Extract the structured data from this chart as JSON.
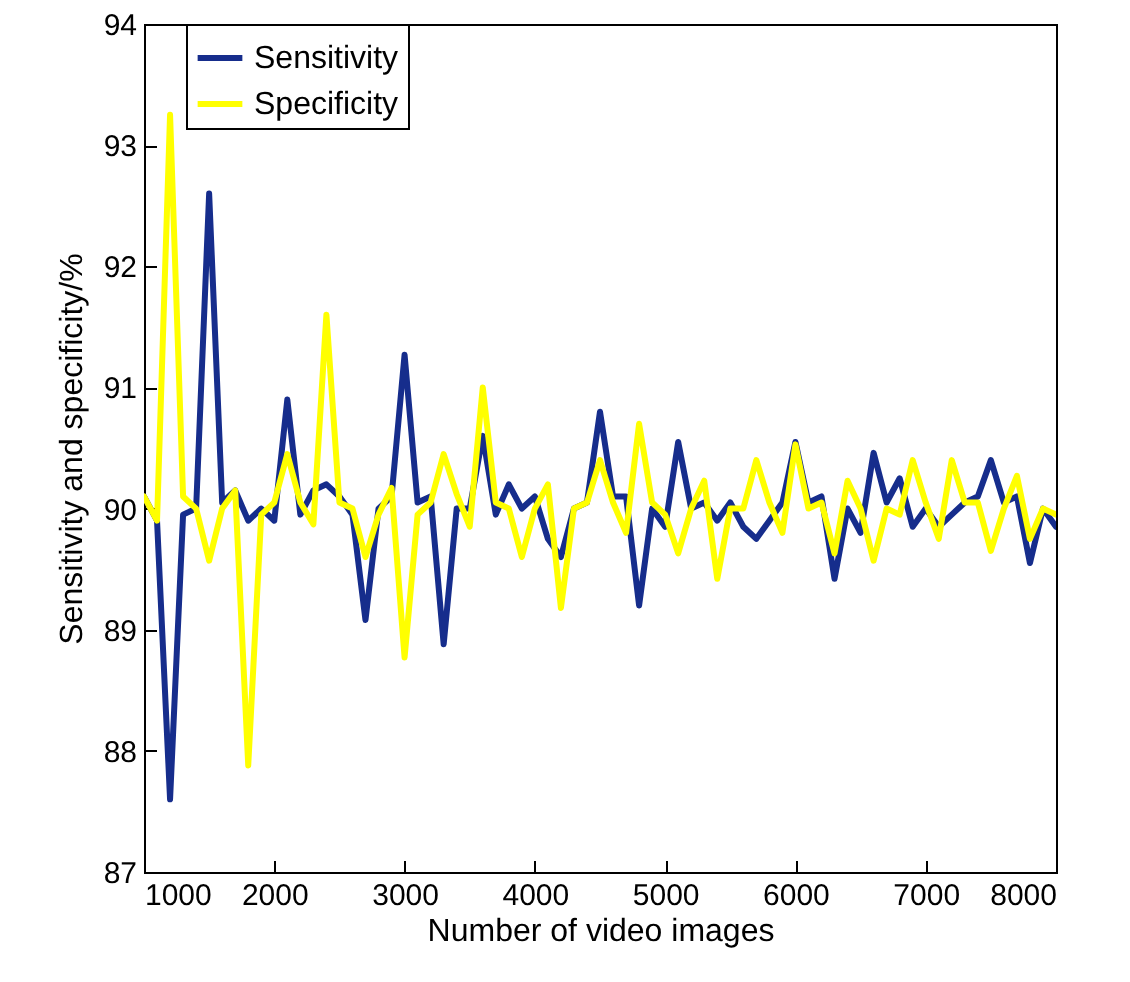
{
  "chart_data": {
    "type": "line",
    "xlabel": "Number of video images",
    "ylabel": "Sensitivity and specificity/%",
    "x": [
      1000,
      1100,
      1200,
      1300,
      1400,
      1500,
      1600,
      1700,
      1800,
      1900,
      2000,
      2100,
      2200,
      2300,
      2400,
      2500,
      2600,
      2700,
      2800,
      2900,
      3000,
      3100,
      3200,
      3300,
      3400,
      3500,
      3600,
      3700,
      3800,
      3900,
      4000,
      4100,
      4200,
      4300,
      4400,
      4500,
      4600,
      4700,
      4800,
      4900,
      5000,
      5100,
      5200,
      5300,
      5400,
      5500,
      5600,
      5700,
      5800,
      5900,
      6000,
      6100,
      6200,
      6300,
      6400,
      6500,
      6600,
      6700,
      6800,
      6900,
      7000,
      7100,
      7200,
      7300,
      7400,
      7500,
      7600,
      7700,
      7800,
      7900,
      8000
    ],
    "series": [
      {
        "name": "Sensitivity",
        "color": "#162d8c",
        "values": [
          90.1,
          89.9,
          87.6,
          89.95,
          90.0,
          92.6,
          90.05,
          90.15,
          89.9,
          90.0,
          89.9,
          90.9,
          89.95,
          90.15,
          90.2,
          90.1,
          89.95,
          89.08,
          90.0,
          90.1,
          91.27,
          90.05,
          90.1,
          88.88,
          90.0,
          90.0,
          90.6,
          89.95,
          90.2,
          90.0,
          90.1,
          89.75,
          89.6,
          90.0,
          90.05,
          90.8,
          90.1,
          90.1,
          89.2,
          90.0,
          89.85,
          90.55,
          90.0,
          90.05,
          89.9,
          90.05,
          89.85,
          89.75,
          89.9,
          90.05,
          90.55,
          90.05,
          90.1,
          89.42,
          90.0,
          89.8,
          90.46,
          90.05,
          90.25,
          89.85,
          90.0,
          89.85,
          89.95,
          90.05,
          90.1,
          90.4,
          90.05,
          90.1,
          89.55,
          90.0,
          89.85
        ]
      },
      {
        "name": "Specificity",
        "color": "#ffff00",
        "values": [
          90.1,
          89.9,
          93.25,
          90.1,
          90.0,
          89.57,
          90.0,
          90.15,
          87.88,
          89.95,
          90.05,
          90.45,
          90.05,
          89.87,
          91.6,
          90.05,
          90.0,
          89.6,
          89.95,
          90.17,
          88.77,
          89.95,
          90.05,
          90.45,
          90.12,
          89.85,
          91.0,
          90.05,
          90.0,
          89.6,
          90.0,
          90.2,
          89.18,
          90.0,
          90.05,
          90.4,
          90.05,
          89.8,
          90.7,
          90.05,
          89.95,
          89.63,
          90.0,
          90.23,
          89.42,
          90.0,
          90.0,
          90.4,
          90.05,
          89.8,
          90.53,
          90.0,
          90.05,
          89.63,
          90.23,
          90.0,
          89.57,
          90.0,
          89.95,
          90.4,
          90.05,
          89.75,
          90.4,
          90.05,
          90.05,
          89.65,
          90.0,
          90.27,
          89.75,
          90.0,
          89.95
        ]
      }
    ],
    "xlim": [
      1000,
      8000
    ],
    "xticks": [
      1000,
      2000,
      3000,
      4000,
      5000,
      6000,
      7000,
      8000
    ],
    "ylim": [
      87,
      94
    ],
    "yticks": [
      87,
      88,
      89,
      90,
      91,
      92,
      93,
      94
    ],
    "legend": "top left",
    "marker": "none",
    "line_style": "solid"
  }
}
